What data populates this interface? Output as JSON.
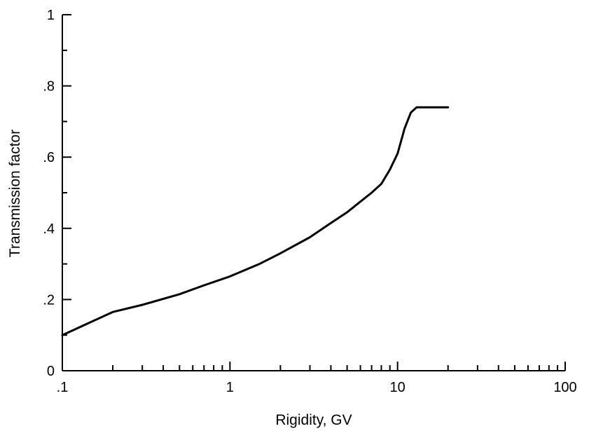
{
  "chart_data": {
    "type": "line",
    "title": "",
    "xlabel": "Rigidity, GV",
    "ylabel": "Transmission factor",
    "xscale": "log",
    "xlim": [
      0.1,
      100
    ],
    "ylim": [
      0,
      1
    ],
    "x_ticks": [
      {
        "value": 0.1,
        "label": ".1"
      },
      {
        "value": 1,
        "label": "1"
      },
      {
        "value": 10,
        "label": "10"
      },
      {
        "value": 100,
        "label": "100"
      }
    ],
    "y_ticks": [
      {
        "value": 0,
        "label": "0"
      },
      {
        "value": 0.2,
        "label": ".2"
      },
      {
        "value": 0.4,
        "label": ".4"
      },
      {
        "value": 0.6,
        "label": ".6"
      },
      {
        "value": 0.8,
        "label": ".8"
      },
      {
        "value": 1,
        "label": "1"
      }
    ],
    "grid": false,
    "legend": "none",
    "series": [
      {
        "color": "#000000",
        "points": [
          [
            0.1,
            0.1
          ],
          [
            0.2,
            0.165
          ],
          [
            0.3,
            0.185
          ],
          [
            0.5,
            0.215
          ],
          [
            0.7,
            0.24
          ],
          [
            1.0,
            0.265
          ],
          [
            1.5,
            0.3
          ],
          [
            2.0,
            0.33
          ],
          [
            3.0,
            0.375
          ],
          [
            4.0,
            0.415
          ],
          [
            5.0,
            0.445
          ],
          [
            6.0,
            0.475
          ],
          [
            7.0,
            0.5
          ],
          [
            8.0,
            0.525
          ],
          [
            9.0,
            0.565
          ],
          [
            10.0,
            0.61
          ],
          [
            11.0,
            0.68
          ],
          [
            12.0,
            0.725
          ],
          [
            13.0,
            0.74
          ],
          [
            20.0,
            0.74
          ]
        ]
      }
    ]
  }
}
